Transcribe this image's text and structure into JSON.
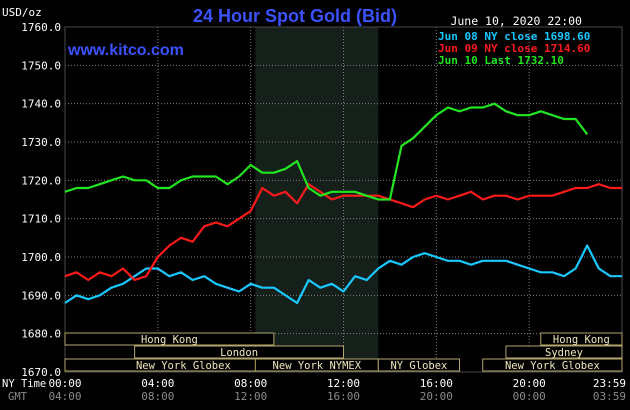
{
  "header": {
    "y_unit": "USD/oz",
    "title": "24 Hour Spot Gold (Bid)",
    "date_time": "June 10, 2020 22:00",
    "watermark": "www.kitco.com"
  },
  "legend": [
    {
      "label": "Jun 08 NY close 1698.60",
      "color": "#19c8ff"
    },
    {
      "label": "Jun 09 NY close 1714.60",
      "color": "#ff1a1a"
    },
    {
      "label": "Jun 10 Last 1732.10",
      "color": "#22e61f"
    }
  ],
  "colors": {
    "background": "#000000",
    "title": "#3b52ff",
    "watermark": "#3b52ff",
    "gridline": "#7f7f7f",
    "session_shade": "#15201a",
    "session_label": "#f0e7b8",
    "session_border": "#b3a66a",
    "axis_text": "#ffffff",
    "gmt_text": "#8c8c8c"
  },
  "axis_labels": {
    "ny_time": "NY Time",
    "gmt": "GMT"
  },
  "sessions": [
    {
      "name": "Hong Kong",
      "start": 0,
      "end": 9.0
    },
    {
      "name": "London",
      "start": 3.0,
      "end": 12.0
    },
    {
      "name": "New York Globex",
      "start": 0,
      "end": 10.2
    },
    {
      "name": "New York NYMEX",
      "start": 8.2,
      "end": 13.5
    },
    {
      "name": "NY Globex",
      "start": 13.5,
      "end": 17.0
    },
    {
      "name": "Hong Kong",
      "start": 20.5,
      "end": 24.0
    },
    {
      "name": "Sydney",
      "start": 19.0,
      "end": 24.0
    },
    {
      "name": "New York Globex",
      "start": 18.0,
      "end": 24.0
    }
  ],
  "chart_data": {
    "type": "line",
    "title": "24 Hour Spot Gold (Bid)",
    "ylabel": "USD/oz",
    "xlabel": "",
    "x_unit": "hours (NY time)",
    "xlim": [
      0,
      24
    ],
    "ylim": [
      1670,
      1760
    ],
    "y_ticks": [
      "1670.0",
      "1680.0",
      "1690.0",
      "1700.0",
      "1710.0",
      "1720.0",
      "1730.0",
      "1740.0",
      "1750.0",
      "1760.0"
    ],
    "x_ticks_ny": [
      "00:00",
      "04:00",
      "08:00",
      "12:00",
      "16:00",
      "20:00",
      "23:59"
    ],
    "x_ticks_gmt": [
      "04:00",
      "08:00",
      "12:00",
      "16:00",
      "20:00",
      "00:00",
      "03:59"
    ],
    "grid": true,
    "shaded_x_range": [
      8.2,
      13.5
    ],
    "legend_position": "top-right",
    "series": [
      {
        "name": "Jun 08 NY close 1698.60",
        "x": [
          0,
          0.5,
          1,
          1.5,
          2,
          2.5,
          3,
          3.5,
          4,
          4.5,
          5,
          5.5,
          6,
          6.5,
          7,
          7.5,
          8,
          8.5,
          9,
          9.5,
          10,
          10.5,
          11,
          11.5,
          12,
          12.5,
          13,
          13.5,
          14,
          14.5,
          15,
          15.5,
          16,
          16.5,
          17,
          17.5,
          18,
          18.5,
          19,
          19.5,
          20,
          20.5,
          21,
          21.5,
          22,
          22.5,
          23,
          23.5,
          24
        ],
        "y": [
          1688,
          1690,
          1689,
          1690,
          1692,
          1693,
          1695,
          1697,
          1697,
          1695,
          1696,
          1694,
          1695,
          1693,
          1692,
          1691,
          1693,
          1692,
          1692,
          1690,
          1688,
          1694,
          1692,
          1693,
          1691,
          1695,
          1694,
          1697,
          1699,
          1698,
          1700,
          1701,
          1700,
          1699,
          1699,
          1698,
          1699,
          1699,
          1699,
          1698,
          1697,
          1696,
          1696,
          1695,
          1697,
          1703,
          1697,
          1695,
          1695
        ]
      },
      {
        "name": "Jun 09 NY close 1714.60",
        "x": [
          0,
          0.5,
          1,
          1.5,
          2,
          2.5,
          3,
          3.5,
          4,
          4.5,
          5,
          5.5,
          6,
          6.5,
          7,
          7.5,
          8,
          8.5,
          9,
          9.5,
          10,
          10.5,
          11,
          11.5,
          12,
          12.5,
          13,
          13.5,
          14,
          14.5,
          15,
          15.5,
          16,
          16.5,
          17,
          17.5,
          18,
          18.5,
          19,
          19.5,
          20,
          20.5,
          21,
          21.5,
          22,
          22.5,
          23,
          23.5,
          24
        ],
        "y": [
          1695,
          1696,
          1694,
          1696,
          1695,
          1697,
          1694,
          1695,
          1700,
          1703,
          1705,
          1704,
          1708,
          1709,
          1708,
          1710,
          1712,
          1718,
          1716,
          1717,
          1714,
          1719,
          1717,
          1715,
          1716,
          1716,
          1716,
          1716,
          1715,
          1714,
          1713,
          1715,
          1716,
          1715,
          1716,
          1717,
          1715,
          1716,
          1716,
          1715,
          1716,
          1716,
          1716,
          1717,
          1718,
          1718,
          1719,
          1718,
          1718
        ]
      },
      {
        "name": "Jun 10 Last 1732.10",
        "x": [
          0,
          0.5,
          1,
          1.5,
          2,
          2.5,
          3,
          3.5,
          4,
          4.5,
          5,
          5.5,
          6,
          6.5,
          7,
          7.5,
          8,
          8.5,
          9,
          9.5,
          10,
          10.5,
          11,
          11.5,
          12,
          12.5,
          13,
          13.5,
          14,
          14.5,
          15,
          15.5,
          16,
          16.5,
          17,
          17.5,
          18,
          18.5,
          19,
          19.5,
          20,
          20.5,
          21,
          21.5,
          22,
          22.5
        ],
        "y": [
          1717,
          1718,
          1718,
          1719,
          1720,
          1721,
          1720,
          1720,
          1718,
          1718,
          1720,
          1721,
          1721,
          1721,
          1719,
          1721,
          1724,
          1722,
          1722,
          1723,
          1725,
          1718,
          1716,
          1717,
          1717,
          1717,
          1716,
          1715,
          1715,
          1729,
          1731,
          1734,
          1737,
          1739,
          1738,
          1739,
          1739,
          1740,
          1738,
          1737,
          1737,
          1738,
          1737,
          1736,
          1736,
          1732
        ]
      }
    ]
  }
}
